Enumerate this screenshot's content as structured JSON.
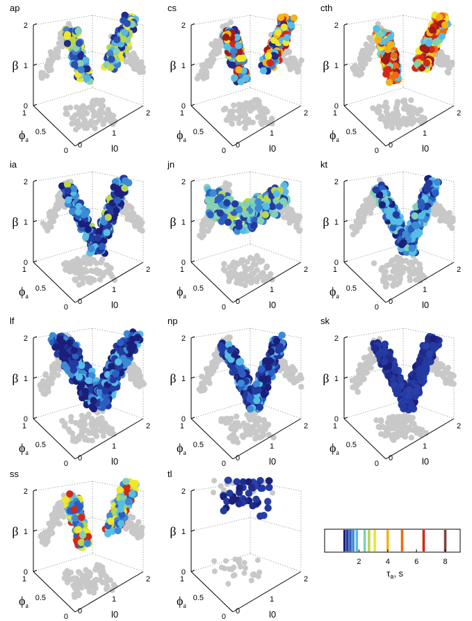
{
  "labels": {
    "beta": "β",
    "phi": "ϕ",
    "phi_sub": "a",
    "l0": "l0",
    "z_ticks": [
      "0",
      "1",
      "2"
    ],
    "phi_ticks": [
      "0",
      "0.5",
      "1"
    ],
    "l0_ticks": [
      "0",
      "1",
      "2"
    ]
  },
  "colors": {
    "shadow": "#c8c8c8",
    "palette": [
      "#1b1f7a",
      "#233aa0",
      "#2a5fc1",
      "#3d8ad6",
      "#56bde6",
      "#7fd0b4",
      "#b9d64c",
      "#f0e62a",
      "#f5b11a",
      "#ec6a15",
      "#d42816",
      "#7a4438"
    ]
  },
  "chart_data": [
    {
      "type": "scatter3d",
      "title": "ap",
      "axes": {
        "zlim": [
          0,
          2
        ],
        "xlim": [
          0,
          1
        ],
        "ylim": [
          0,
          2
        ]
      },
      "shape": "twin",
      "colors": [
        "#2b4fb5",
        "#3f7fcf",
        "#59b7e3",
        "#86d1b0",
        "#b9d64c",
        "#f0e62a",
        "#1f2a8a"
      ]
    },
    {
      "type": "scatter3d",
      "title": "cs",
      "axes": {
        "zlim": [
          0,
          2
        ],
        "xlim": [
          0,
          1
        ],
        "ylim": [
          0,
          2
        ]
      },
      "shape": "twin",
      "colors": [
        "#1f2a8a",
        "#3f7fcf",
        "#56bde6",
        "#f0e62a",
        "#f5b11a",
        "#d42816",
        "#a31a12"
      ]
    },
    {
      "type": "scatter3d",
      "title": "cth",
      "axes": {
        "zlim": [
          0,
          2
        ],
        "xlim": [
          0,
          1
        ],
        "ylim": [
          0,
          2
        ]
      },
      "shape": "twin",
      "colors": [
        "#d42816",
        "#a31a12",
        "#f5b11a",
        "#f0e62a",
        "#ec6a15",
        "#56bde6",
        "#7fd0b4"
      ]
    },
    {
      "type": "scatter3d",
      "title": "ia",
      "axes": {
        "zlim": [
          0,
          2
        ],
        "xlim": [
          0,
          1
        ],
        "ylim": [
          0,
          2
        ]
      },
      "shape": "vee",
      "colors": [
        "#1b1f7a",
        "#233aa0",
        "#2a5fc1",
        "#1b1f7a",
        "#3d8ad6",
        "#56bde6",
        "#b9d64c"
      ]
    },
    {
      "type": "scatter3d",
      "title": "jn",
      "axes": {
        "zlim": [
          0,
          2
        ],
        "xlim": [
          0,
          1
        ],
        "ylim": [
          0,
          2
        ]
      },
      "shape": "cloud",
      "colors": [
        "#56bde6",
        "#3d8ad6",
        "#233aa0",
        "#7fd0b4",
        "#86d1b0",
        "#2a5fc1",
        "#b9d64c"
      ]
    },
    {
      "type": "scatter3d",
      "title": "kt",
      "axes": {
        "zlim": [
          0,
          2
        ],
        "xlim": [
          0,
          1
        ],
        "ylim": [
          0,
          2
        ]
      },
      "shape": "vee",
      "colors": [
        "#233aa0",
        "#2a5fc1",
        "#56bde6",
        "#3d8ad6",
        "#1b1f7a",
        "#7fd0b4",
        "#56bde6"
      ]
    },
    {
      "type": "scatter3d",
      "title": "lf",
      "axes": {
        "zlim": [
          0,
          2
        ],
        "xlim": [
          0,
          1
        ],
        "ylim": [
          0,
          2
        ]
      },
      "shape": "heart",
      "colors": [
        "#1b1f7a",
        "#233aa0",
        "#2a5fc1",
        "#1b1f7a",
        "#3d8ad6",
        "#56bde6",
        "#233aa0"
      ]
    },
    {
      "type": "scatter3d",
      "title": "np",
      "axes": {
        "zlim": [
          0,
          2
        ],
        "xlim": [
          0,
          1
        ],
        "ylim": [
          0,
          2
        ]
      },
      "shape": "vee",
      "colors": [
        "#1b1f7a",
        "#233aa0",
        "#2a5fc1",
        "#3d8ad6",
        "#56bde6",
        "#1b1f7a",
        "#233aa0"
      ]
    },
    {
      "type": "scatter3d",
      "title": "sk",
      "axes": {
        "zlim": [
          0,
          2
        ],
        "xlim": [
          0,
          1
        ],
        "ylim": [
          0,
          2
        ]
      },
      "shape": "vee",
      "colors": [
        "#233aa0",
        "#233aa0",
        "#1b1f7a",
        "#233aa0",
        "#2a3fa8",
        "#233aa0",
        "#1f2a8a"
      ]
    },
    {
      "type": "scatter3d",
      "title": "ss",
      "axes": {
        "zlim": [
          0,
          2
        ],
        "xlim": [
          0,
          1
        ],
        "ylim": [
          0,
          2
        ]
      },
      "shape": "twin",
      "colors": [
        "#56bde6",
        "#3d8ad6",
        "#7fd0b4",
        "#b9d64c",
        "#f0e62a",
        "#d42816",
        "#2a5fc1"
      ]
    },
    {
      "type": "scatter3d",
      "title": "tl",
      "axes": {
        "zlim": [
          0,
          2
        ],
        "xlim": [
          0,
          1
        ],
        "ylim": [
          0,
          2
        ]
      },
      "shape": "sparse",
      "colors": [
        "#233aa0",
        "#233aa0",
        "#1b1f7a",
        "#233aa0",
        "#2a3fa8",
        "#233aa0",
        "#1f2a8a"
      ]
    }
  ],
  "colorbar": {
    "ticks": [
      "2",
      "4",
      "6",
      "8"
    ],
    "tick_values": [
      2,
      4,
      6,
      8
    ],
    "range": [
      0,
      8.7
    ],
    "bars": [
      {
        "v": 1.0,
        "c": "#1b1f7a"
      },
      {
        "v": 1.2,
        "c": "#233aa0"
      },
      {
        "v": 1.4,
        "c": "#2a5fc1"
      },
      {
        "v": 1.6,
        "c": "#3d8ad6"
      },
      {
        "v": 1.85,
        "c": "#56bde6"
      },
      {
        "v": 2.4,
        "c": "#7fd0b4"
      },
      {
        "v": 2.7,
        "c": "#b9d64c"
      },
      {
        "v": 3.1,
        "c": "#f0e62a"
      },
      {
        "v": 4.0,
        "c": "#f5b11a"
      },
      {
        "v": 5.0,
        "c": "#ec6a15"
      },
      {
        "v": 6.5,
        "c": "#d42816"
      },
      {
        "v": 8.0,
        "c": "#7a4438"
      }
    ],
    "label": "τ",
    "label_sub": "a",
    "label_unit": ", s"
  }
}
